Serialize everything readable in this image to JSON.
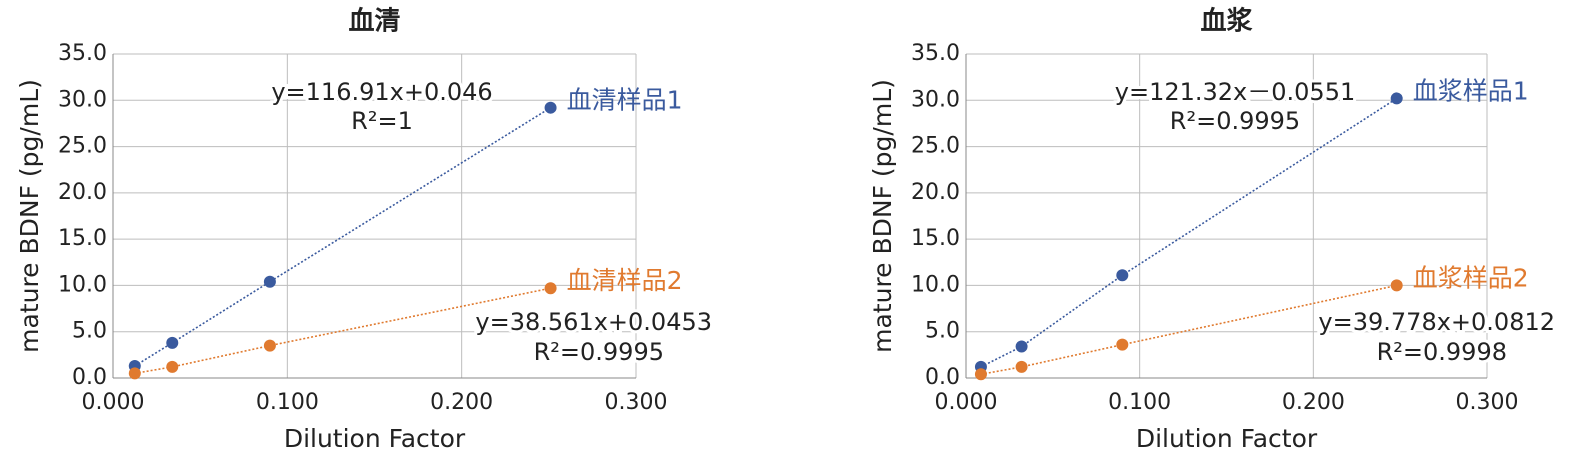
{
  "chart_data": [
    {
      "type": "scatter",
      "title": "血清",
      "x_label": "Dilution Factor",
      "y_label": "mature BDNF (pg/mL)",
      "xlim": [
        0,
        0.3
      ],
      "ylim": [
        0,
        35
      ],
      "grid": true,
      "xticks": [
        {
          "value": 0,
          "label": "0.000"
        },
        {
          "value": 0.1,
          "label": "0.100"
        },
        {
          "value": 0.2,
          "label": "0.200"
        },
        {
          "value": 0.3,
          "label": "0.300"
        }
      ],
      "yticks": [
        {
          "value": 0,
          "label": "0.0"
        },
        {
          "value": 5,
          "label": "5.0"
        },
        {
          "value": 10,
          "label": "10.0"
        },
        {
          "value": 15,
          "label": "15.0"
        },
        {
          "value": 20,
          "label": "20.0"
        },
        {
          "value": 25,
          "label": "25.0"
        },
        {
          "value": 30,
          "label": "30.0"
        },
        {
          "value": 35,
          "label": "35.0"
        }
      ],
      "series": [
        {
          "name": "血清样品1",
          "color": "#3a5a9e",
          "x": [
            0.0125,
            0.034,
            0.09,
            0.251
          ],
          "values": [
            1.3,
            3.8,
            10.4,
            29.2
          ],
          "equation": [
            "y=116.91x+0.046",
            "R²=1"
          ]
        },
        {
          "name": "血清样品2",
          "color": "#e07a2f",
          "x": [
            0.0125,
            0.034,
            0.09,
            0.251
          ],
          "values": [
            0.5,
            1.2,
            3.5,
            9.7
          ],
          "equation": [
            "y=38.561x+0.0453",
            "R²=0.9995"
          ]
        }
      ]
    },
    {
      "type": "scatter",
      "title": "血浆",
      "x_label": "Dilution Factor",
      "y_label": "mature BDNF (pg/mL)",
      "xlim": [
        0,
        0.3
      ],
      "ylim": [
        0,
        35
      ],
      "grid": true,
      "xticks": [
        {
          "value": 0,
          "label": "0.000"
        },
        {
          "value": 0.1,
          "label": "0.100"
        },
        {
          "value": 0.2,
          "label": "0.200"
        },
        {
          "value": 0.3,
          "label": "0.300"
        }
      ],
      "yticks": [
        {
          "value": 0,
          "label": "0.0"
        },
        {
          "value": 5,
          "label": "5.0"
        },
        {
          "value": 10,
          "label": "10.0"
        },
        {
          "value": 15,
          "label": "15.0"
        },
        {
          "value": 20,
          "label": "20.0"
        },
        {
          "value": 25,
          "label": "25.0"
        },
        {
          "value": 30,
          "label": "30.0"
        },
        {
          "value": 35,
          "label": "35.0"
        }
      ],
      "series": [
        {
          "name": "血浆样品1",
          "color": "#3a5a9e",
          "x": [
            0.0086,
            0.032,
            0.09,
            0.248
          ],
          "values": [
            1.2,
            3.4,
            11.1,
            30.2
          ],
          "equation": [
            "y=121.32x－0.0551",
            "R²=0.9995"
          ]
        },
        {
          "name": "血浆样品2",
          "color": "#e07a2f",
          "x": [
            0.0086,
            0.032,
            0.09,
            0.248
          ],
          "values": [
            0.4,
            1.2,
            3.6,
            10.0
          ],
          "equation": [
            "y=39.778x+0.0812",
            "R²=0.9998"
          ]
        }
      ]
    }
  ]
}
